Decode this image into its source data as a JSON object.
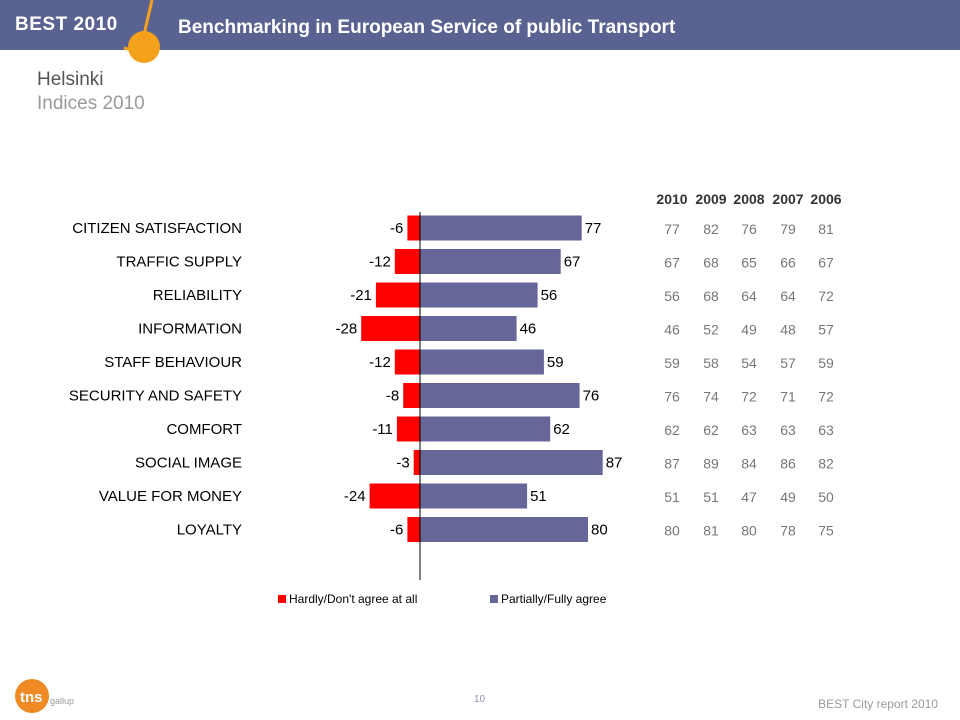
{
  "header": {
    "brand": "BEST 2010",
    "title": "Benchmarking in European Service of public Transport"
  },
  "page": {
    "title": "Helsinki",
    "subtitle": "Indices 2010"
  },
  "colors": {
    "header_bg": "#5a6291",
    "accent_orange": "#f4a21c",
    "negative": "#ff0000",
    "positive": "#666699"
  },
  "chart_data": {
    "type": "bar",
    "orientation": "horizontal",
    "stacked": "diverging",
    "categories": [
      "CITIZEN SATISFACTION",
      "TRAFFIC SUPPLY",
      "RELIABILITY",
      "INFORMATION",
      "STAFF BEHAVIOUR",
      "SECURITY AND SAFETY",
      "COMFORT",
      "SOCIAL IMAGE",
      "VALUE FOR MONEY",
      "LOYALTY"
    ],
    "series": [
      {
        "name": "Hardly/Don't agree at all",
        "color": "#ff0000",
        "values": [
          -6,
          -12,
          -21,
          -28,
          -12,
          -8,
          -11,
          -3,
          -24,
          -6
        ]
      },
      {
        "name": "Partially/Fully agree",
        "color": "#666699",
        "values": [
          77,
          67,
          56,
          46,
          59,
          76,
          62,
          87,
          51,
          80
        ]
      }
    ],
    "legend_position": "bottom",
    "grid": false,
    "table": {
      "years": [
        "2010",
        "2009",
        "2008",
        "2007",
        "2006"
      ],
      "rows": [
        [
          "77",
          "82",
          "76",
          "79",
          "81"
        ],
        [
          "67",
          "68",
          "65",
          "66",
          "67"
        ],
        [
          "56",
          "68",
          "64",
          "64",
          "72"
        ],
        [
          "46",
          "52",
          "49",
          "48",
          "57"
        ],
        [
          "59",
          "58",
          "54",
          "57",
          "59"
        ],
        [
          "76",
          "74",
          "72",
          "71",
          "72"
        ],
        [
          "62",
          "62",
          "63",
          "63",
          "63"
        ],
        [
          "87",
          "89",
          "84",
          "86",
          "82"
        ],
        [
          "51",
          "51",
          "47",
          "49",
          "50"
        ],
        [
          "80",
          "81",
          "80",
          "78",
          "75"
        ]
      ]
    }
  },
  "footer": {
    "logo_text": "tns gallup",
    "page_number": "10",
    "report": "BEST City report 2010"
  }
}
